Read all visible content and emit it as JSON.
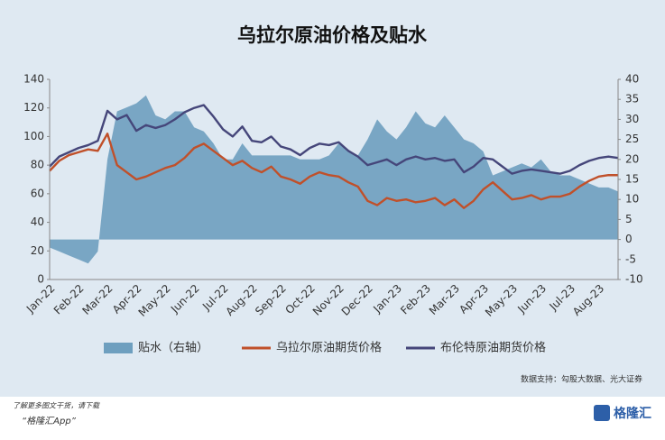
{
  "chart_data": {
    "type": "line",
    "title": "乌拉尔原油价格及贴水",
    "categories": [
      "Jan-22",
      null,
      null,
      "Feb-22",
      null,
      null,
      "Mar-22",
      null,
      null,
      "Apr-22",
      null,
      null,
      "May-22",
      null,
      null,
      "Jun-22",
      null,
      null,
      "Jul-22",
      null,
      null,
      "Aug-22",
      null,
      null,
      "Sep-22",
      null,
      null,
      "Oct-22",
      null,
      null,
      "Nov-22",
      null,
      null,
      "Dec-22",
      null,
      null,
      "Jan-23",
      null,
      null,
      "Feb-23",
      null,
      null,
      "Mar-23",
      null,
      null,
      "Apr-23",
      null,
      null,
      "May-23",
      null,
      null,
      "Jun-23",
      null,
      null,
      "Jul-23",
      null,
      null,
      "Aug-23",
      null,
      null
    ],
    "series": [
      {
        "name": "贴水（右轴）",
        "type": "area",
        "axis": "y2",
        "color": "#6e9fbf",
        "values": [
          -2,
          -3,
          -4,
          -5,
          -6,
          -3,
          20,
          32,
          33,
          34,
          36,
          31,
          30,
          32,
          32,
          28,
          27,
          24,
          20,
          20,
          24,
          21,
          21,
          21,
          21,
          21,
          20,
          20,
          20,
          21,
          24,
          22,
          21,
          25,
          30,
          27,
          25,
          28,
          32,
          29,
          28,
          31,
          28,
          25,
          24,
          22,
          16,
          17,
          18,
          19,
          18,
          20,
          17,
          16,
          16,
          15,
          14,
          13,
          13,
          12
        ]
      },
      {
        "name": "乌拉尔原油期货价格",
        "type": "line",
        "color": "#c0502a",
        "values": [
          76,
          83,
          87,
          89,
          91,
          90,
          102,
          80,
          75,
          70,
          72,
          75,
          78,
          80,
          85,
          92,
          95,
          90,
          85,
          80,
          83,
          78,
          75,
          79,
          72,
          70,
          67,
          72,
          75,
          73,
          72,
          68,
          65,
          55,
          52,
          57,
          55,
          56,
          54,
          55,
          57,
          52,
          56,
          50,
          55,
          63,
          68,
          62,
          56,
          57,
          59,
          56,
          58,
          58,
          60,
          65,
          69,
          72,
          73,
          73
        ]
      },
      {
        "name": "布伦特原油期货价格",
        "type": "line",
        "color": "#45467a",
        "values": [
          79,
          86,
          89,
          92,
          94,
          97,
          118,
          112,
          115,
          104,
          108,
          106,
          108,
          112,
          117,
          120,
          122,
          114,
          105,
          100,
          107,
          97,
          96,
          100,
          93,
          91,
          87,
          92,
          95,
          94,
          96,
          90,
          86,
          80,
          82,
          84,
          80,
          84,
          86,
          84,
          85,
          83,
          84,
          75,
          79,
          85,
          84,
          79,
          74,
          76,
          77,
          76,
          75,
          74,
          76,
          80,
          83,
          85,
          86,
          85
        ]
      }
    ],
    "ylim": [
      0,
      140
    ],
    "yticks": [
      0,
      20,
      40,
      60,
      80,
      100,
      120,
      140
    ],
    "y2lim": [
      -10,
      40
    ],
    "y2ticks": [
      -10,
      -5,
      0,
      5,
      10,
      15,
      20,
      25,
      30,
      35,
      40
    ],
    "source": "数据支持：勾股大数据、光大证券"
  },
  "footer": {
    "note": "了解更多图文干货，请下载",
    "app": "“格隆汇App”",
    "brand": "格隆汇"
  }
}
